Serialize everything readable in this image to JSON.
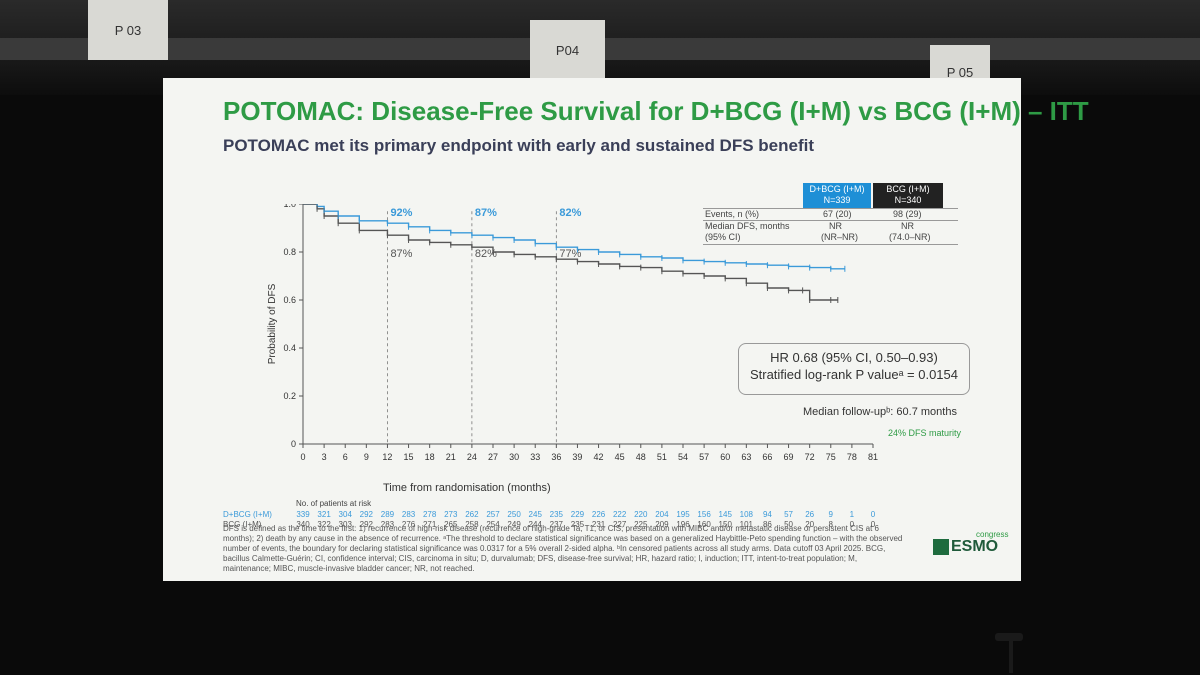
{
  "venue": {
    "signs": [
      "P 03",
      "P04",
      "P 05"
    ]
  },
  "slide": {
    "title": "POTOMAC: Disease-Free Survival for D+BCG (I+M) vs BCG (I+M) – ITT",
    "subtitle": "POTOMAC met its primary endpoint with early and sustained DFS benefit",
    "colors": {
      "title": "#2e9b45",
      "subtitle": "#3a3f58",
      "series_a": "#3b9ad9",
      "series_b": "#555555"
    },
    "table": {
      "col_a_header": "D+BCG (I+M)",
      "col_a_n": "N=339",
      "col_b_header": "BCG (I+M)",
      "col_b_n": "N=340",
      "rows": [
        {
          "label": "Events, n (%)",
          "a": "67 (20)",
          "b": "98 (29)"
        },
        {
          "label": "Median DFS, months",
          "a": "NR",
          "b": "NR"
        },
        {
          "label": "(95% CI)",
          "a": "(NR–NR)",
          "b": "(74.0–NR)"
        }
      ]
    },
    "hr_line1": "HR 0.68 (95% CI, 0.50–0.93)",
    "hr_line2": "Stratified log-rank P valueᵃ = 0.0154",
    "followup": "Median follow-upᵇ: 60.7 months",
    "maturity": "24% DFS maturity",
    "risk_title": "No. of patients at risk",
    "footnote": "DFS is defined as the time to the first: 1) recurrence of high-risk disease (recurrence of high-grade Ta, T1, or CIS; presentation with MIBC and/or metastatic disease or persistent CIS at 6 months); 2) death by any cause in the absence of recurrence. ᵃThe threshold to declare statistical significance was based on a generalized Haybittle-Peto spending function – with the observed number of events, the boundary for declaring statistical significance was 0.0317 for a 5% overall 2-sided alpha. ᵇIn censored patients across all study arms. Data cutoff 03 April 2025. BCG, bacillus Calmette-Guérin; CI, confidence interval; CIS, carcinoma in situ; D, durvalumab; DFS, disease-free survival; HR, hazard ratio; I, induction; ITT, intent-to-treat population; M, maintenance; MIBC, muscle-invasive bladder cancer; NR, not reached.",
    "logo_text": "ESMO",
    "logo_sub": "congress"
  },
  "chart_data": {
    "type": "line",
    "xlabel": "Time from randomisation (months)",
    "ylabel": "Probability of DFS",
    "xlim": [
      0,
      81
    ],
    "ylim": [
      0,
      1.0
    ],
    "x_ticks": [
      0,
      3,
      6,
      9,
      12,
      15,
      18,
      21,
      24,
      27,
      30,
      33,
      36,
      39,
      42,
      45,
      48,
      51,
      54,
      57,
      60,
      63,
      66,
      69,
      72,
      75,
      78,
      81
    ],
    "y_ticks": [
      0,
      0.2,
      0.4,
      0.6,
      0.8,
      1.0
    ],
    "y_tick_labels": [
      "0",
      "0.2",
      "0.4",
      "0.6",
      "0.8",
      "1.0"
    ],
    "landmarks": [
      {
        "x": 12,
        "a_label": "92%",
        "b_label": "87%"
      },
      {
        "x": 24,
        "a_label": "87%",
        "b_label": "82%"
      },
      {
        "x": 36,
        "a_label": "82%",
        "b_label": "77%"
      }
    ],
    "series": [
      {
        "name": "D+BCG (I+M)",
        "color": "#3b9ad9",
        "x": [
          0,
          2,
          3,
          5,
          8,
          12,
          15,
          18,
          21,
          24,
          27,
          30,
          33,
          36,
          39,
          42,
          45,
          48,
          51,
          54,
          57,
          60,
          63,
          66,
          69,
          72,
          75,
          77
        ],
        "y": [
          1.0,
          0.99,
          0.97,
          0.95,
          0.93,
          0.92,
          0.905,
          0.89,
          0.88,
          0.87,
          0.86,
          0.85,
          0.835,
          0.82,
          0.81,
          0.8,
          0.79,
          0.78,
          0.775,
          0.765,
          0.76,
          0.755,
          0.75,
          0.745,
          0.74,
          0.735,
          0.73,
          0.73
        ]
      },
      {
        "name": "BCG (I+M)",
        "color": "#555555",
        "x": [
          0,
          2,
          3,
          5,
          8,
          12,
          15,
          18,
          21,
          24,
          27,
          30,
          33,
          36,
          39,
          42,
          45,
          48,
          51,
          54,
          57,
          60,
          63,
          66,
          69,
          71,
          72,
          75,
          76
        ],
        "y": [
          1.0,
          0.98,
          0.95,
          0.92,
          0.89,
          0.87,
          0.85,
          0.84,
          0.83,
          0.82,
          0.8,
          0.79,
          0.78,
          0.77,
          0.76,
          0.75,
          0.74,
          0.735,
          0.72,
          0.71,
          0.7,
          0.69,
          0.67,
          0.65,
          0.64,
          0.64,
          0.6,
          0.6,
          0.6
        ]
      }
    ],
    "risk_table": {
      "x": [
        0,
        3,
        6,
        9,
        12,
        15,
        18,
        21,
        24,
        27,
        30,
        33,
        36,
        39,
        42,
        45,
        48,
        51,
        54,
        57,
        60,
        63,
        66,
        69,
        72,
        75,
        78,
        81
      ],
      "rows": [
        {
          "name": "D+BCG (I+M)",
          "color": "#3b9ad9",
          "values": [
            "339",
            "321",
            "304",
            "292",
            "289",
            "283",
            "278",
            "273",
            "262",
            "257",
            "250",
            "245",
            "235",
            "229",
            "226",
            "222",
            "220",
            "204",
            "195",
            "156",
            "145",
            "108",
            "94",
            "57",
            "26",
            "9",
            "1",
            "0"
          ]
        },
        {
          "name": "BCG (I+M)",
          "color": "#555555",
          "values": [
            "340",
            "322",
            "303",
            "292",
            "283",
            "276",
            "271",
            "265",
            "258",
            "254",
            "249",
            "244",
            "237",
            "235",
            "231",
            "227",
            "225",
            "209",
            "196",
            "160",
            "150",
            "101",
            "86",
            "50",
            "20",
            "8",
            "0",
            "0"
          ]
        }
      ]
    }
  }
}
